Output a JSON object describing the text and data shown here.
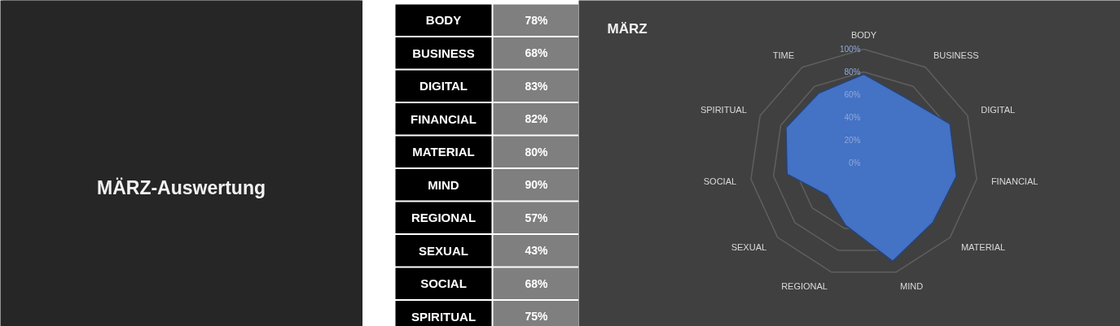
{
  "chart_data": [
    {
      "type": "other",
      "title": "MÄRZ-Auswertung"
    },
    {
      "type": "other",
      "categories": [
        "BODY",
        "BUSINESS",
        "DIGITAL",
        "FINANCIAL",
        "MATERIAL",
        "MIND",
        "REGIONAL",
        "SEXUAL",
        "SOCIAL",
        "SPIRITUAL"
      ],
      "values": [
        78,
        68,
        83,
        82,
        80,
        90,
        57,
        43,
        68,
        75
      ],
      "value_labels": [
        "78%",
        "68%",
        "83%",
        "82%",
        "80%",
        "90%",
        "57%",
        "43%",
        "68%",
        "75%"
      ]
    },
    {
      "type": "radar",
      "title": "MÄRZ",
      "categories": [
        "BODY",
        "BUSINESS",
        "DIGITAL",
        "FINANCIAL",
        "MATERIAL",
        "MIND",
        "REGIONAL",
        "SEXUAL",
        "SOCIAL",
        "SPIRITUAL",
        "TIME"
      ],
      "series": [
        {
          "color": "#4472c4",
          "values": [
            78,
            68,
            83,
            82,
            80,
            90,
            57,
            43,
            68,
            75,
            73
          ]
        }
      ],
      "ylim": [
        0,
        100
      ],
      "yticks": [
        {
          "value": 0,
          "label": "0%"
        },
        {
          "value": 20,
          "label": "20%"
        },
        {
          "value": 40,
          "label": "40%"
        },
        {
          "value": 60,
          "label": "60%"
        },
        {
          "value": 80,
          "label": "80%"
        },
        {
          "value": 100,
          "label": "100%"
        }
      ],
      "grid": true
    }
  ]
}
